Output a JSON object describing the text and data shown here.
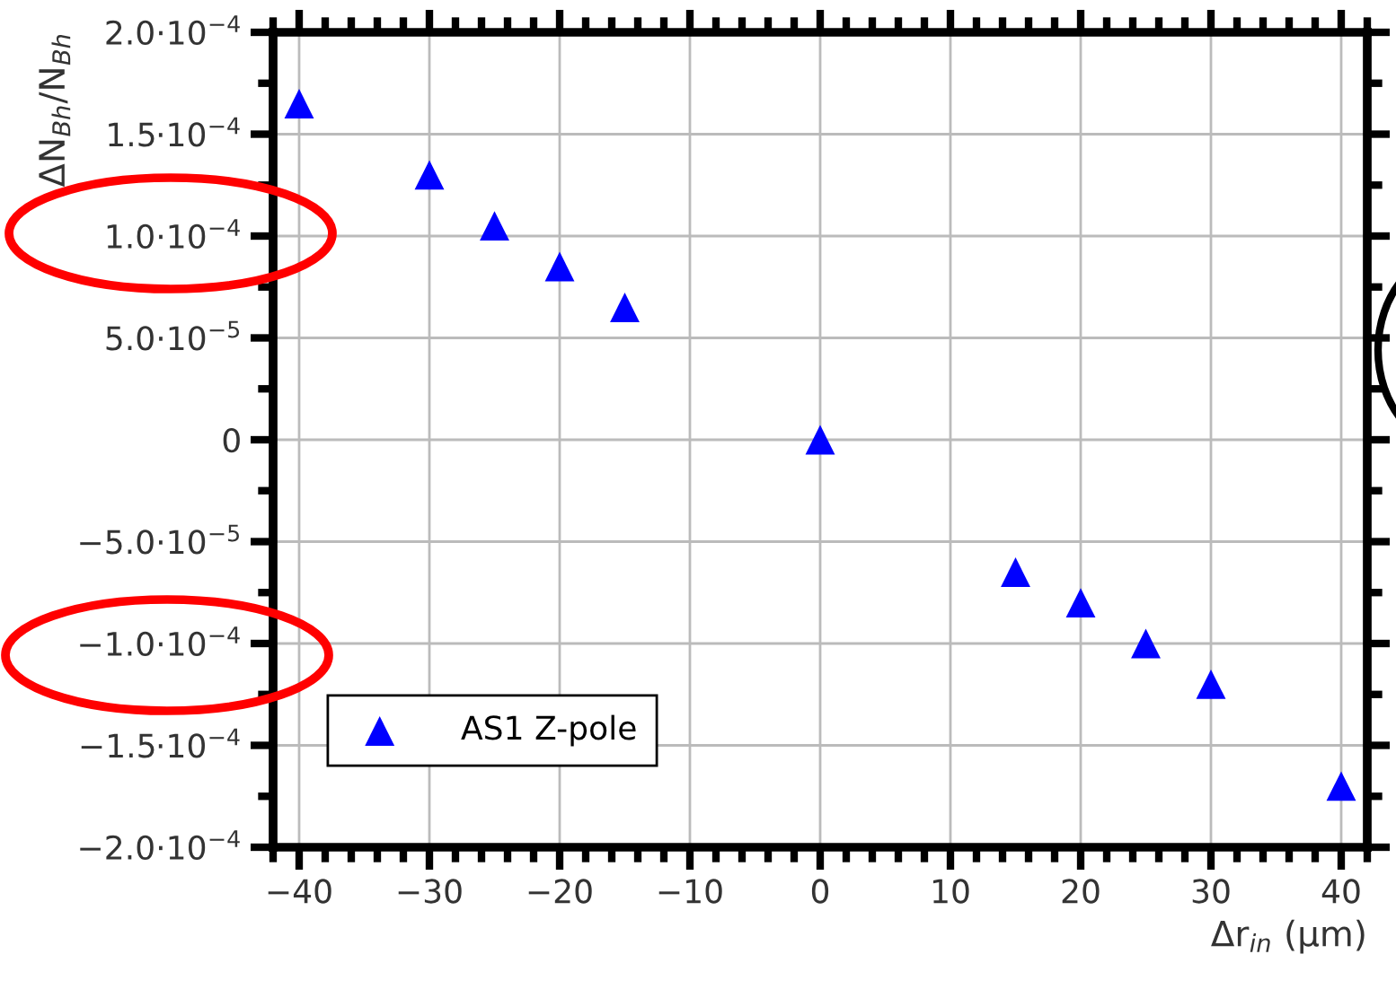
{
  "chart_data": {
    "type": "scatter",
    "xlabel": "Δr$_{in}$ (μm)",
    "ylabel": "ΔN$_{Bh}$/N$_{Bh}$",
    "x": [
      -40,
      -30,
      -25,
      -20,
      -15,
      0,
      15,
      20,
      25,
      30,
      40
    ],
    "series": [
      {
        "name": "AS1 Z-pole",
        "color": "#0000ff",
        "values": [
          0.000165,
          0.00013,
          0.000105,
          8.5e-05,
          6.5e-05,
          0,
          -6.5e-05,
          -8e-05,
          -0.0001,
          -0.00012,
          -0.00017
        ]
      }
    ],
    "xlim": [
      -42,
      42
    ],
    "ylim": [
      -0.0002,
      0.0002
    ],
    "xticks": [
      {
        "value": -40,
        "label": "−40"
      },
      {
        "value": -30,
        "label": "−30"
      },
      {
        "value": -20,
        "label": "−20"
      },
      {
        "value": -10,
        "label": "−10"
      },
      0,
      10,
      20,
      30,
      40
    ],
    "yticks": [
      {
        "value": -0.0002,
        "label": "−2.0·10$^{−4}$"
      },
      {
        "value": -0.00015,
        "label": "−1.5·10$^{−4}$"
      },
      {
        "value": -0.0001,
        "label": "−1.0·10$^{−4}$"
      },
      {
        "value": -5e-05,
        "label": "−5.0·10$^{−5}$"
      },
      {
        "value": 0,
        "label": "0"
      },
      {
        "value": 5e-05,
        "label": "5.0·10$^{−5}$"
      },
      {
        "value": 0.0001,
        "label": "1.0·10$^{−4}$"
      },
      {
        "value": 0.00015,
        "label": "1.5·10$^{−4}$"
      },
      {
        "value": 0.0002,
        "label": "2.0·10$^{−4}$"
      }
    ],
    "grid": true,
    "legend": "bottom left",
    "marker": "triangle"
  }
}
